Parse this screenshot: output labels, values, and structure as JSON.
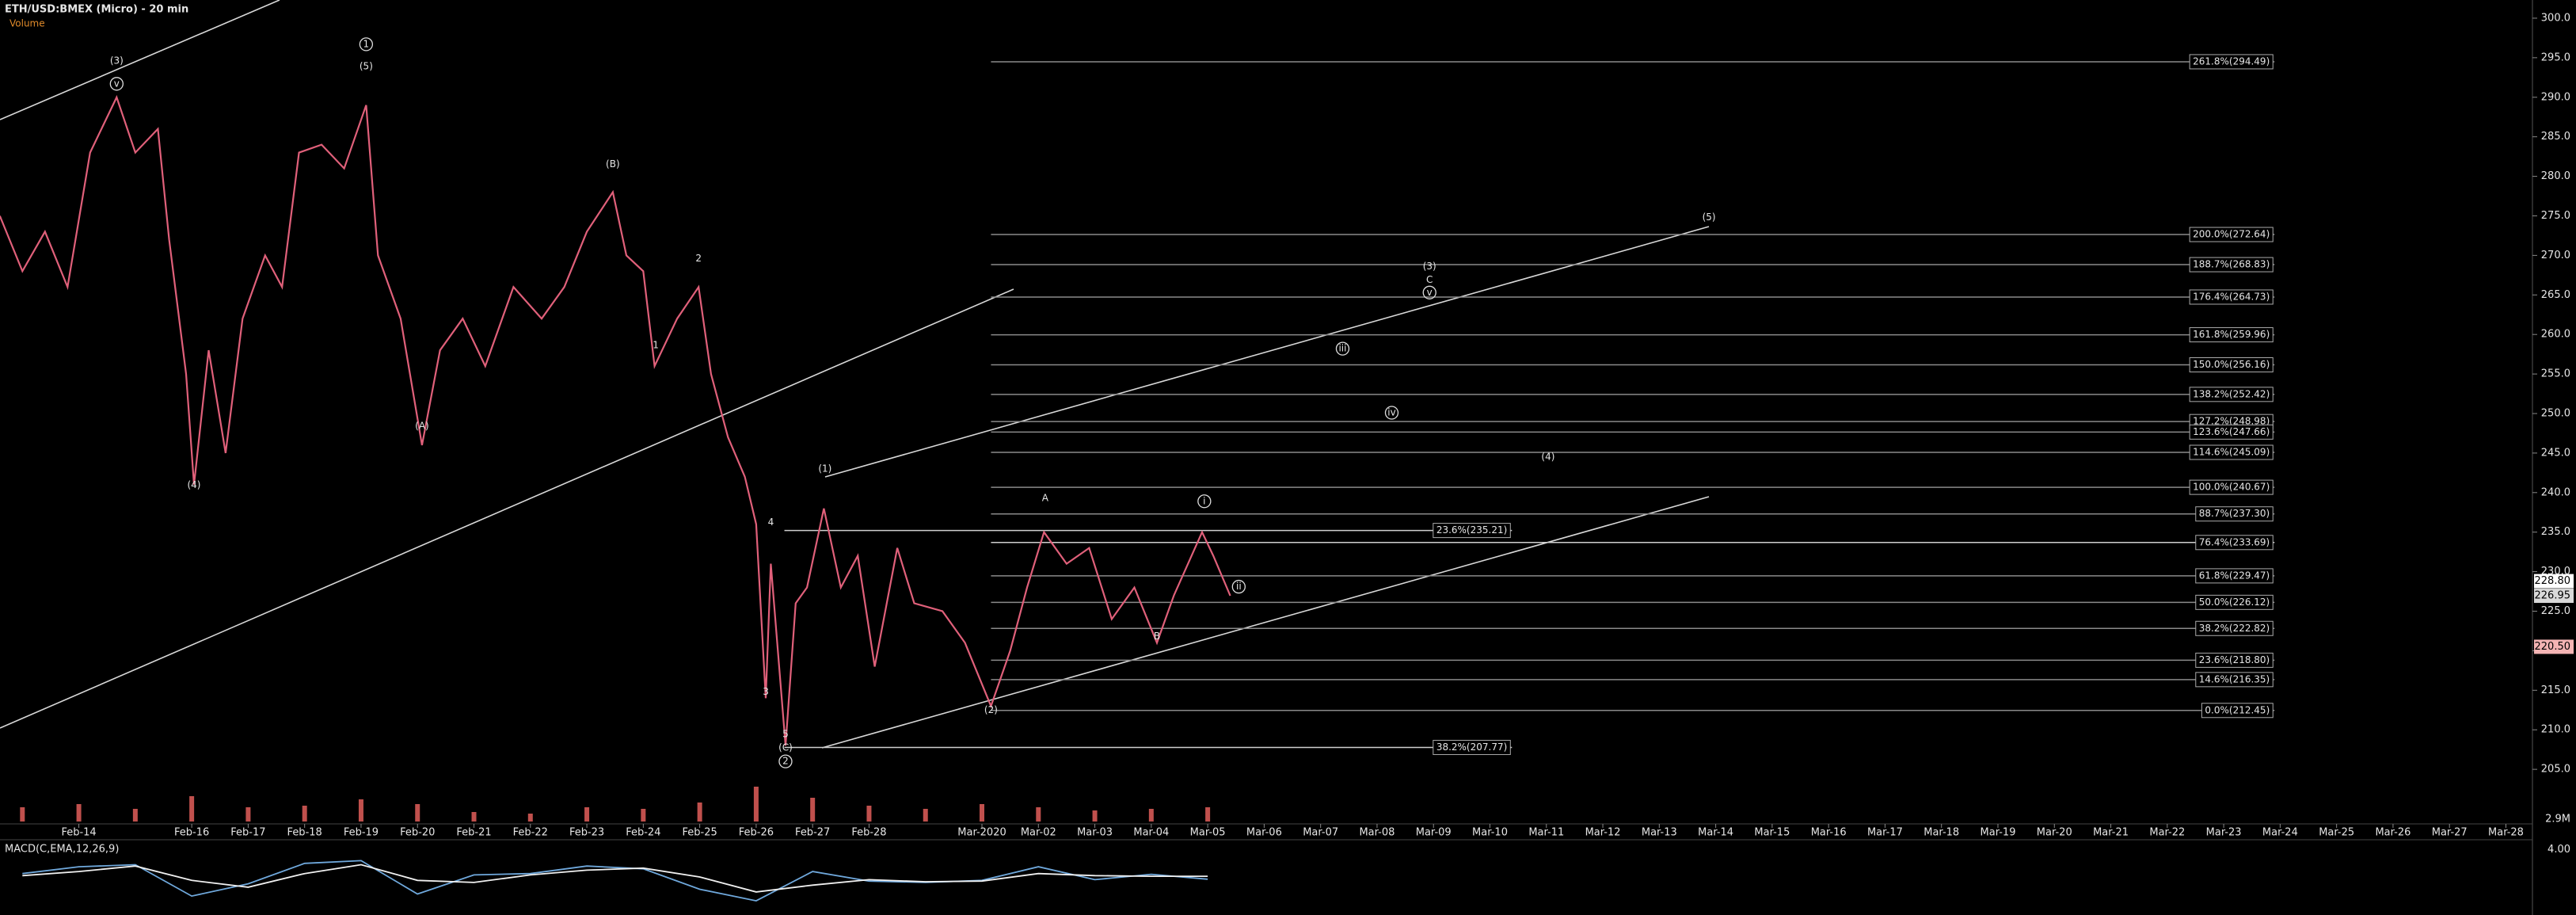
{
  "chart_data": {
    "type": "line",
    "title": "ETH/USD:BMEX (Micro) - 20 min",
    "xlim": [
      -1.397,
      43.47
    ],
    "ylim": [
      198.4,
      302.3
    ],
    "xticks": [
      {
        "value": 0,
        "label": "Feb-14"
      },
      {
        "value": 2,
        "label": "Feb-16"
      },
      {
        "value": 3,
        "label": "Feb-17"
      },
      {
        "value": 4,
        "label": "Feb-18"
      },
      {
        "value": 5,
        "label": "Feb-19"
      },
      {
        "value": 6,
        "label": "Feb-20"
      },
      {
        "value": 7,
        "label": "Feb-21"
      },
      {
        "value": 8,
        "label": "Feb-22"
      },
      {
        "value": 9,
        "label": "Feb-23"
      },
      {
        "value": 10,
        "label": "Feb-24"
      },
      {
        "value": 11,
        "label": "Feb-25"
      },
      {
        "value": 12,
        "label": "Feb-26"
      },
      {
        "value": 13,
        "label": "Feb-27"
      },
      {
        "value": 14,
        "label": "Feb-28"
      },
      {
        "value": 16,
        "label": "Mar-2020"
      },
      {
        "value": 17,
        "label": "Mar-02"
      },
      {
        "value": 18,
        "label": "Mar-03"
      },
      {
        "value": 19,
        "label": "Mar-04"
      },
      {
        "value": 20,
        "label": "Mar-05"
      },
      {
        "value": 21,
        "label": "Mar-06"
      },
      {
        "value": 22,
        "label": "Mar-07"
      },
      {
        "value": 23,
        "label": "Mar-08"
      },
      {
        "value": 24,
        "label": "Mar-09"
      },
      {
        "value": 25,
        "label": "Mar-10"
      },
      {
        "value": 26,
        "label": "Mar-11"
      },
      {
        "value": 27,
        "label": "Mar-12"
      },
      {
        "value": 28,
        "label": "Mar-13"
      },
      {
        "value": 29,
        "label": "Mar-14"
      },
      {
        "value": 30,
        "label": "Mar-15"
      },
      {
        "value": 31,
        "label": "Mar-16"
      },
      {
        "value": 32,
        "label": "Mar-17"
      },
      {
        "value": 33,
        "label": "Mar-18"
      },
      {
        "value": 34,
        "label": "Mar-19"
      },
      {
        "value": 35,
        "label": "Mar-20"
      },
      {
        "value": 36,
        "label": "Mar-21"
      },
      {
        "value": 37,
        "label": "Mar-22"
      },
      {
        "value": 38,
        "label": "Mar-23"
      },
      {
        "value": 39,
        "label": "Mar-24"
      },
      {
        "value": 40,
        "label": "Mar-25"
      },
      {
        "value": 41,
        "label": "Mar-26"
      },
      {
        "value": 42,
        "label": "Mar-27"
      },
      {
        "value": 43,
        "label": "Mar-28"
      }
    ],
    "yticks": [
      {
        "value": 300,
        "label": "300.0"
      },
      {
        "value": 295,
        "label": "295.0"
      },
      {
        "value": 290,
        "label": "290.0"
      },
      {
        "value": 285,
        "label": "285.0"
      },
      {
        "value": 280,
        "label": "280.0"
      },
      {
        "value": 275,
        "label": "275.0"
      },
      {
        "value": 270,
        "label": "270.0"
      },
      {
        "value": 265,
        "label": "265.0"
      },
      {
        "value": 260,
        "label": "260.0"
      },
      {
        "value": 255,
        "label": "255.0"
      },
      {
        "value": 250,
        "label": "250.0"
      },
      {
        "value": 245,
        "label": "245.0"
      },
      {
        "value": 240,
        "label": "240.0"
      },
      {
        "value": 235,
        "label": "235.0"
      },
      {
        "value": 230,
        "label": "230.0"
      },
      {
        "value": 225,
        "label": "225.0"
      },
      {
        "value": 220,
        "label": "220.0"
      },
      {
        "value": 215,
        "label": "215.0"
      },
      {
        "value": 210,
        "label": "210.0"
      },
      {
        "value": 205,
        "label": "205.0"
      }
    ],
    "series": [
      {
        "color": "#e0607a",
        "x": [
          -1.4,
          -1.0,
          -0.6,
          -0.2,
          0.2,
          0.67,
          1.0,
          1.4,
          1.6,
          1.9,
          2.04,
          2.3,
          2.6,
          2.9,
          3.3,
          3.6,
          3.9,
          4.3,
          4.7,
          5.09,
          5.3,
          5.7,
          6.08,
          6.4,
          6.8,
          7.2,
          7.7,
          8.2,
          8.6,
          9.0,
          9.46,
          9.7,
          10.0,
          10.2,
          10.6,
          10.98,
          11.2,
          11.5,
          11.8,
          12.0,
          12.17,
          12.26,
          12.52,
          12.7,
          12.9,
          13.2,
          13.5,
          13.8,
          14.1,
          14.5,
          14.8,
          15.3,
          15.7,
          16.16,
          16.5,
          16.8,
          17.1,
          17.5,
          17.9,
          18.3,
          18.7,
          19.1,
          19.4,
          19.9,
          20.1,
          20.4
        ],
        "values": [
          275,
          268,
          273,
          266,
          283,
          290,
          283,
          286,
          272,
          255,
          241,
          258,
          245,
          262,
          270,
          266,
          283,
          284,
          281,
          289,
          270,
          262,
          246,
          258,
          262,
          256,
          266,
          262,
          266,
          273,
          278,
          270,
          268,
          256,
          262,
          266,
          255,
          247,
          242,
          236,
          214,
          231,
          208,
          226,
          228,
          238,
          228,
          232,
          218,
          233,
          226,
          225,
          221,
          213,
          220,
          228,
          235,
          231,
          233,
          224,
          228,
          221,
          227,
          235,
          232,
          226.95
        ]
      }
    ],
    "fib_levels": [
      {
        "value": 294.49,
        "label": "261.8%(294.49)"
      },
      {
        "value": 272.64,
        "label": "200.0%(272.64)"
      },
      {
        "value": 268.83,
        "label": "188.7%(268.83)"
      },
      {
        "value": 264.73,
        "label": "176.4%(264.73)"
      },
      {
        "value": 259.96,
        "label": "161.8%(259.96)"
      },
      {
        "value": 256.16,
        "label": "150.0%(256.16)"
      },
      {
        "value": 252.42,
        "label": "138.2%(252.42)"
      },
      {
        "value": 248.98,
        "label": "127.2%(248.98)"
      },
      {
        "value": 247.66,
        "label": "123.6%(247.66)"
      },
      {
        "value": 245.09,
        "label": "114.6%(245.09)"
      },
      {
        "value": 240.67,
        "label": "100.0%(240.67)"
      },
      {
        "value": 237.3,
        "label": "88.7%(237.30)"
      },
      {
        "value": 233.69,
        "label": "76.4%(233.69)"
      },
      {
        "value": 229.47,
        "label": "61.8%(229.47)"
      },
      {
        "value": 226.12,
        "label": "50.0%(226.12)"
      },
      {
        "value": 222.82,
        "label": "38.2%(222.82)"
      },
      {
        "value": 218.8,
        "label": "23.6%(218.80)"
      },
      {
        "value": 216.35,
        "label": "14.6%(216.35)"
      },
      {
        "value": 212.45,
        "label": "0.0%(212.45)"
      }
    ],
    "fib_levels_short": [
      {
        "value": 235.21,
        "label": "23.6%(235.21)"
      },
      {
        "value": 207.77,
        "label": "38.2%(207.77)"
      }
    ],
    "price_tags": [
      {
        "value": 228.8,
        "label": "228.80",
        "color": "#ffffff"
      },
      {
        "value": 226.95,
        "label": "226.95",
        "color": "#d9d9d9"
      },
      {
        "value": 220.5,
        "label": "220.50",
        "color": "#f4b4b4"
      }
    ],
    "annotations": [
      {
        "text": "(3)",
        "x": 0.67,
        "y": 294.6
      },
      {
        "text": "v",
        "x": 0.67,
        "y": 291.7,
        "circle": true
      },
      {
        "text": "(4)",
        "x": 2.04,
        "y": 240.95
      },
      {
        "text": "1",
        "x": 5.09,
        "y": 296.7,
        "circle": true
      },
      {
        "text": "(5)",
        "x": 5.09,
        "y": 293.9
      },
      {
        "text": "(A)",
        "x": 6.08,
        "y": 248.4
      },
      {
        "text": "(B)",
        "x": 9.46,
        "y": 281.5
      },
      {
        "text": "2",
        "x": 10.98,
        "y": 269.6
      },
      {
        "text": "1",
        "x": 10.22,
        "y": 258.6
      },
      {
        "text": "4",
        "x": 12.26,
        "y": 236.2
      },
      {
        "text": "3",
        "x": 12.17,
        "y": 214.8
      },
      {
        "text": "5",
        "x": 12.52,
        "y": 209.4
      },
      {
        "text": "(C)",
        "x": 12.52,
        "y": 207.7
      },
      {
        "text": "2",
        "x": 12.52,
        "y": 206.0,
        "circle": true
      },
      {
        "text": "(1)",
        "x": 13.22,
        "y": 243.0
      },
      {
        "text": "(2)",
        "x": 16.16,
        "y": 212.5
      },
      {
        "text": "A",
        "x": 17.12,
        "y": 239.3
      },
      {
        "text": "B",
        "x": 19.1,
        "y": 221.8
      },
      {
        "text": "i",
        "x": 19.94,
        "y": 238.9,
        "circle": true
      },
      {
        "text": "ii",
        "x": 20.55,
        "y": 228.1,
        "circle": true
      },
      {
        "text": "iii",
        "x": 22.39,
        "y": 258.2,
        "circle": true
      },
      {
        "text": "iv",
        "x": 23.26,
        "y": 250.1,
        "circle": true
      },
      {
        "text": "(3)",
        "x": 23.93,
        "y": 268.6
      },
      {
        "text": "C",
        "x": 23.93,
        "y": 266.9
      },
      {
        "text": "v",
        "x": 23.93,
        "y": 265.3,
        "circle": true
      },
      {
        "text": "(4)",
        "x": 26.03,
        "y": 244.5
      },
      {
        "text": "(5)",
        "x": 28.88,
        "y": 274.8
      }
    ],
    "volume": {
      "name": "Volume",
      "color": "#c0504d",
      "x": [
        -1,
        0,
        1,
        2,
        3,
        4,
        5,
        6,
        7,
        8,
        9,
        10,
        11,
        12,
        13,
        14,
        15,
        16,
        17,
        18,
        19,
        20
      ],
      "values": [
        0.9,
        1.1,
        0.8,
        1.6,
        0.9,
        1.0,
        1.4,
        1.1,
        0.6,
        0.5,
        0.9,
        0.8,
        1.2,
        2.2,
        1.5,
        1.0,
        0.8,
        1.1,
        0.9,
        0.7,
        0.8,
        0.9
      ],
      "ylim": [
        0,
        3.1
      ],
      "yticks": [
        {
          "value": 2.9,
          "label": "2.9M"
        }
      ]
    },
    "macd": {
      "name": "MACD(C,EMA,12,26,9)",
      "x": [
        -1,
        0,
        1,
        2,
        3,
        4,
        5,
        6,
        7,
        8,
        9,
        10,
        11,
        12,
        13,
        14,
        15,
        16,
        17,
        18,
        19,
        20
      ],
      "values": [
        0.5,
        1.5,
        1.8,
        -2.8,
        -1.0,
        2.0,
        2.4,
        -2.5,
        0.3,
        0.5,
        1.6,
        1.2,
        -1.8,
        -3.5,
        0.8,
        -0.6,
        -0.8,
        -0.5,
        1.5,
        -0.4,
        0.4,
        -0.32
      ],
      "signal": [
        0.2,
        0.8,
        1.6,
        -0.5,
        -1.5,
        0.5,
        1.8,
        -0.5,
        -0.8,
        0.3,
        1.0,
        1.3,
        0.0,
        -2.2,
        -1.2,
        -0.4,
        -0.7,
        -0.6,
        0.5,
        0.2,
        0.1,
        0.1
      ],
      "ylim": [
        -5,
        5
      ],
      "yticks": [
        {
          "value": 4,
          "label": "4.00"
        }
      ]
    }
  }
}
